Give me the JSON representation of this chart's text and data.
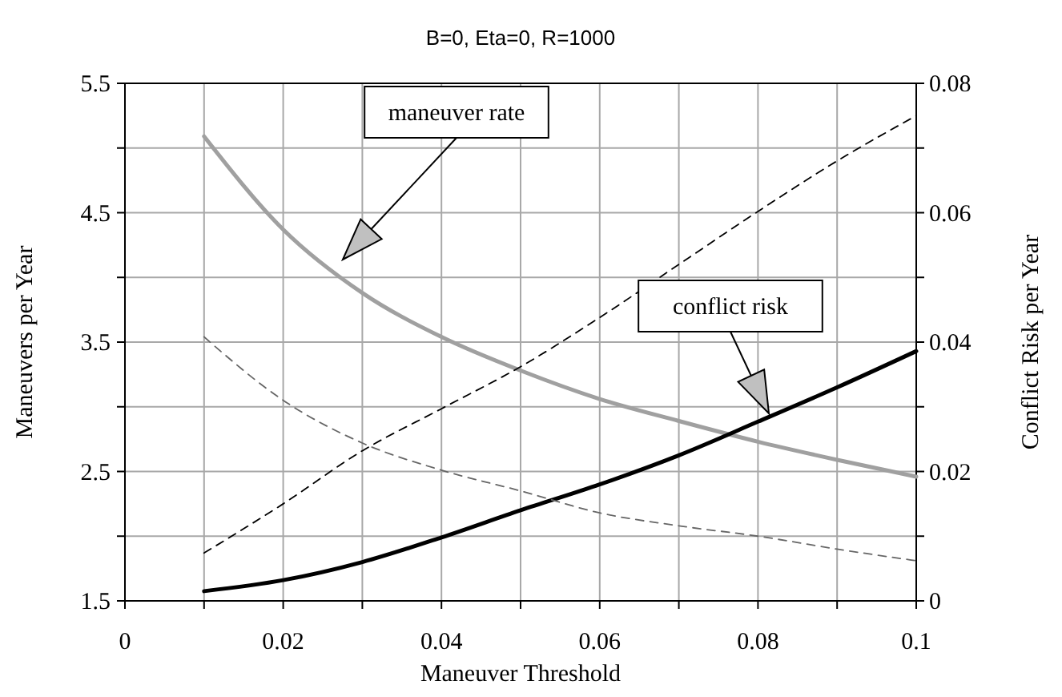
{
  "chart_data": {
    "type": "line",
    "title": "B=0, Eta=0, R=1000",
    "xlabel": "Maneuver Threshold",
    "ylabel": "Maneuvers per Year",
    "y2label": "Conflict Risk per Year",
    "x": [
      0.01,
      0.02,
      0.03,
      0.04,
      0.05,
      0.06,
      0.07,
      0.08,
      0.09,
      0.1
    ],
    "series": [
      {
        "color": "#a0a0a0",
        "line_style": "solid",
        "values": [
          5.09,
          4.37,
          3.88,
          3.54,
          3.28,
          3.06,
          2.89,
          2.73,
          2.59,
          2.46
        ]
      },
      {
        "color": "#000000",
        "line_style": "solid",
        "axis": "y2",
        "values": [
          0.0015,
          0.0032,
          0.006,
          0.0098,
          0.014,
          0.018,
          0.0225,
          0.0277,
          0.033,
          0.0386
        ]
      },
      {
        "color": "#000000",
        "line_style": "dashed",
        "axis": "y2",
        "values": [
          0.0074,
          0.015,
          0.0232,
          0.0297,
          0.0362,
          0.0438,
          0.052,
          0.0602,
          0.068,
          0.075
        ]
      },
      {
        "color": "#666666",
        "line_style": "dashed",
        "values": [
          3.54,
          3.05,
          2.72,
          2.51,
          2.35,
          2.18,
          2.08,
          2.0,
          1.9,
          1.81
        ]
      }
    ],
    "xlim": [
      0,
      0.1
    ],
    "xticks": [
      0,
      {
        "value": 0.01,
        "label": null
      },
      0.02,
      {
        "value": 0.03,
        "label": null
      },
      0.04,
      {
        "value": 0.05,
        "label": null
      },
      0.06,
      {
        "value": 0.07,
        "label": null
      },
      0.08,
      {
        "value": 0.09,
        "label": null
      },
      0.1
    ],
    "ylim": [
      1.5,
      5.5
    ],
    "yticks": [
      1.5,
      {
        "value": 2,
        "label": null
      },
      2.5,
      {
        "value": 3,
        "label": null
      },
      3.5,
      {
        "value": 4,
        "label": null
      },
      4.5,
      {
        "value": 5,
        "label": null
      },
      5.5
    ],
    "y2lim": [
      0,
      0.08
    ],
    "y2ticks": [
      0,
      {
        "value": 0.01,
        "label": null
      },
      0.02,
      {
        "value": 0.03,
        "label": null
      },
      0.04,
      {
        "value": 0.05,
        "label": null
      },
      0.06,
      {
        "value": 0.07,
        "label": null
      },
      0.08
    ],
    "grid": true,
    "marker": "none",
    "annotations": [
      "maneuver rate",
      "conflict risk"
    ]
  }
}
